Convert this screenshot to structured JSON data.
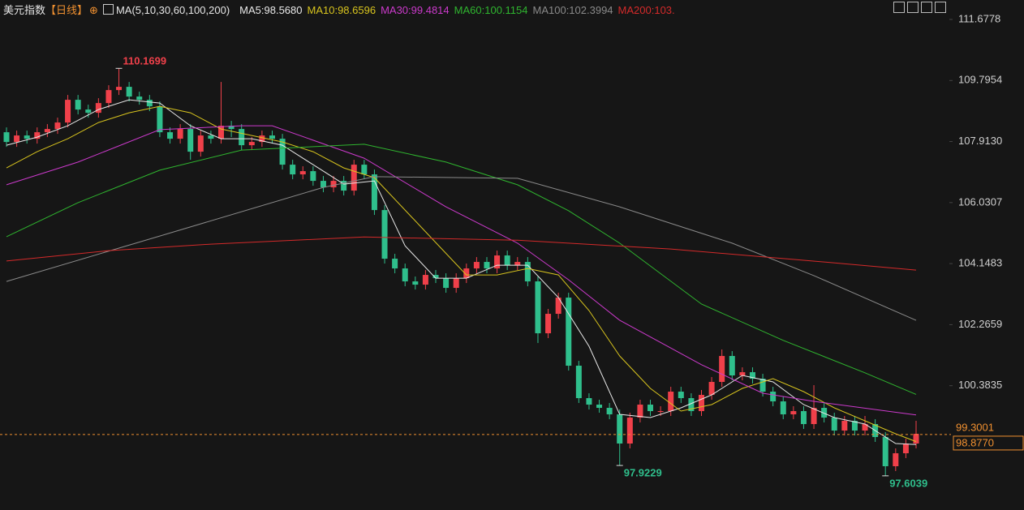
{
  "chart_data": {
    "type": "candlestick",
    "title": "美元指数",
    "period": "【日线】",
    "indicator": "MA(5,10,30,60,100,200)",
    "up_color": "#f0404a",
    "down_color": "#2fbf8c",
    "ylim": [
      96.55,
      112.2778
    ],
    "yticks": [
      111.6778,
      109.7954,
      {
        "value": 107.913,
        "label": "107.9130"
      },
      106.0307,
      104.1483,
      102.2659,
      100.3835
    ],
    "open": [
      108.2,
      107.9,
      108.1,
      108.0,
      108.2,
      108.3,
      108.5,
      109.2,
      108.9,
      108.8,
      109.1,
      109.5,
      109.6,
      109.3,
      109.2,
      109.0,
      108.2,
      108.0,
      108.3,
      107.6,
      108.1,
      108.0,
      108.4,
      108.3,
      107.8,
      107.9,
      108.1,
      108.0,
      107.2,
      106.9,
      107.0,
      106.7,
      106.5,
      106.7,
      106.4,
      107.2,
      106.9,
      105.8,
      104.3,
      104.0,
      103.6,
      103.5,
      103.8,
      103.7,
      103.4,
      103.7,
      104.0,
      104.2,
      104.0,
      104.4,
      104.1,
      104.2,
      103.6,
      102.0,
      102.6,
      103.1,
      101.0,
      100.0,
      99.8,
      99.7,
      99.5,
      98.6,
      99.4,
      99.8,
      99.6,
      99.6,
      100.2,
      100.0,
      99.6,
      100.1,
      100.5,
      101.3,
      100.7,
      100.8,
      100.6,
      100.2,
      99.9,
      99.5,
      99.6,
      99.2,
      99.7,
      99.4,
      99.0,
      99.3,
      99.0,
      99.2,
      98.8,
      97.9,
      98.3,
      98.6
    ],
    "high": [
      108.35,
      108.25,
      108.25,
      108.35,
      108.45,
      108.65,
      109.35,
      109.35,
      109.05,
      109.25,
      109.65,
      110.1699,
      109.75,
      109.45,
      109.35,
      109.15,
      108.35,
      108.45,
      108.45,
      108.25,
      108.25,
      109.75,
      108.55,
      108.45,
      108.05,
      108.25,
      108.25,
      108.15,
      107.35,
      107.15,
      107.15,
      106.85,
      106.85,
      106.85,
      107.35,
      107.35,
      107.05,
      105.95,
      104.45,
      104.15,
      103.75,
      103.95,
      103.95,
      103.85,
      103.85,
      104.15,
      104.35,
      104.35,
      104.55,
      104.55,
      104.35,
      104.35,
      103.75,
      102.75,
      103.25,
      103.25,
      101.15,
      100.15,
      99.95,
      99.85,
      99.65,
      99.55,
      99.95,
      99.95,
      99.75,
      100.35,
      100.35,
      100.15,
      100.25,
      100.65,
      101.5,
      101.45,
      100.95,
      100.95,
      100.75,
      100.35,
      100.05,
      99.75,
      99.75,
      100.4,
      99.85,
      99.55,
      99.45,
      99.45,
      99.45,
      99.35,
      98.95,
      98.45,
      98.75,
      99.3001
    ],
    "low": [
      107.75,
      107.75,
      107.85,
      107.85,
      108.05,
      108.15,
      108.35,
      108.75,
      108.65,
      108.65,
      108.95,
      109.35,
      109.15,
      109.05,
      108.85,
      108.05,
      107.85,
      107.85,
      107.35,
      107.45,
      107.85,
      107.85,
      108.05,
      107.65,
      107.65,
      107.75,
      107.85,
      107.05,
      106.75,
      106.75,
      106.55,
      106.35,
      106.35,
      106.25,
      106.25,
      106.75,
      105.65,
      104.15,
      103.85,
      103.45,
      103.35,
      103.35,
      103.55,
      103.25,
      103.25,
      103.55,
      103.85,
      103.85,
      103.85,
      103.95,
      103.95,
      103.45,
      101.7,
      101.85,
      102.45,
      100.85,
      99.85,
      99.65,
      99.55,
      99.35,
      97.9229,
      98.45,
      99.25,
      99.45,
      99.45,
      99.45,
      99.85,
      99.45,
      99.45,
      99.95,
      100.35,
      100.55,
      100.55,
      100.45,
      100.05,
      99.75,
      99.35,
      99.35,
      99.05,
      99.05,
      99.25,
      98.85,
      98.85,
      98.85,
      98.85,
      98.65,
      97.6039,
      97.75,
      98.15,
      98.45
    ],
    "close": [
      107.9,
      108.1,
      108.0,
      108.2,
      108.3,
      108.5,
      109.2,
      108.9,
      108.8,
      109.1,
      109.5,
      109.6,
      109.3,
      109.2,
      109.0,
      108.2,
      108.0,
      108.3,
      107.6,
      108.1,
      108.0,
      108.4,
      108.3,
      107.8,
      107.9,
      108.1,
      108.0,
      107.2,
      106.9,
      107.0,
      106.7,
      106.5,
      106.7,
      106.4,
      107.2,
      106.9,
      105.8,
      104.3,
      104.0,
      103.6,
      103.5,
      103.8,
      103.7,
      103.4,
      103.7,
      104.0,
      104.2,
      104.0,
      104.4,
      104.1,
      104.2,
      103.6,
      102.0,
      102.6,
      103.1,
      101.0,
      100.0,
      99.8,
      99.7,
      99.5,
      98.6,
      99.4,
      99.8,
      99.6,
      99.6,
      100.2,
      100.0,
      99.6,
      100.1,
      100.5,
      101.3,
      100.7,
      100.8,
      100.6,
      100.2,
      99.9,
      99.5,
      99.6,
      99.2,
      99.7,
      99.4,
      99.0,
      99.3,
      99.0,
      99.2,
      98.8,
      97.9,
      98.3,
      98.6,
      98.9
    ],
    "ma_series": [
      {
        "name": "MA5:98.5680",
        "color": "#e8e8e8",
        "x": [
          0,
          3,
          6,
          9,
          12,
          15,
          18,
          21,
          24,
          27,
          30,
          33,
          36,
          39,
          42,
          45,
          48,
          51,
          54,
          57,
          60,
          63,
          66,
          69,
          72,
          75,
          78,
          81,
          84,
          87,
          89
        ],
        "values": [
          107.8,
          108.05,
          108.4,
          108.9,
          109.2,
          109.1,
          108.4,
          108.0,
          108.0,
          107.8,
          107.2,
          106.6,
          106.7,
          104.7,
          103.7,
          103.7,
          104.1,
          104.1,
          103.1,
          101.6,
          99.5,
          99.4,
          99.7,
          100.1,
          100.7,
          100.5,
          99.8,
          99.4,
          99.2,
          98.6,
          98.568
        ]
      },
      {
        "name": "MA10:98.6596",
        "color": "#d8c41e",
        "x": [
          0,
          3,
          6,
          9,
          12,
          15,
          18,
          21,
          24,
          27,
          30,
          33,
          36,
          39,
          42,
          45,
          48,
          51,
          54,
          57,
          60,
          63,
          66,
          69,
          72,
          75,
          78,
          81,
          84,
          87,
          89
        ],
        "values": [
          107.1,
          107.6,
          108.0,
          108.5,
          108.8,
          109.0,
          108.8,
          108.3,
          108.1,
          107.9,
          107.6,
          107.1,
          106.8,
          105.8,
          104.8,
          103.8,
          103.8,
          104.0,
          103.8,
          102.7,
          101.3,
          100.3,
          99.6,
          99.8,
          100.3,
          100.6,
          100.2,
          99.7,
          99.3,
          98.9,
          98.6596
        ]
      },
      {
        "name": "MA30:99.4814",
        "color": "#cc3acc",
        "x": [
          0,
          7,
          15,
          23,
          26,
          35,
          43,
          50,
          55,
          60,
          68,
          74,
          79,
          89
        ],
        "values": [
          106.58,
          107.28,
          108.28,
          108.4,
          108.4,
          107.4,
          105.9,
          104.78,
          103.65,
          102.4,
          101.03,
          100.15,
          99.9,
          99.4814
        ]
      },
      {
        "name": "MA60:100.1154",
        "color": "#2fb52f",
        "x": [
          0,
          7,
          15,
          23,
          35,
          43,
          50,
          55,
          60,
          68,
          76,
          84,
          89
        ],
        "values": [
          104.98,
          106.03,
          107.03,
          107.65,
          107.83,
          107.28,
          106.58,
          105.78,
          104.78,
          102.9,
          101.78,
          100.78,
          100.1154
        ]
      },
      {
        "name": "MA100:102.3994",
        "color": "#8a8a8a",
        "x": [
          0,
          15,
          31,
          36,
          50,
          60,
          71,
          79,
          89
        ],
        "values": [
          103.6,
          105.0,
          106.5,
          106.83,
          106.78,
          105.9,
          104.78,
          103.78,
          102.3994
        ]
      },
      {
        "name": "MA200:103.",
        "color": "#d42a2a",
        "x": [
          0,
          10,
          20,
          35,
          50,
          65,
          80,
          89
        ],
        "values": [
          104.23,
          104.55,
          104.75,
          104.97,
          104.87,
          104.6,
          104.2,
          103.95
        ]
      }
    ],
    "annotations": [
      110.1699,
      97.9229,
      97.6039
    ],
    "price_labels": [
      99.3001,
      {
        "value": 98.877,
        "label": "98.8770"
      }
    ]
  }
}
